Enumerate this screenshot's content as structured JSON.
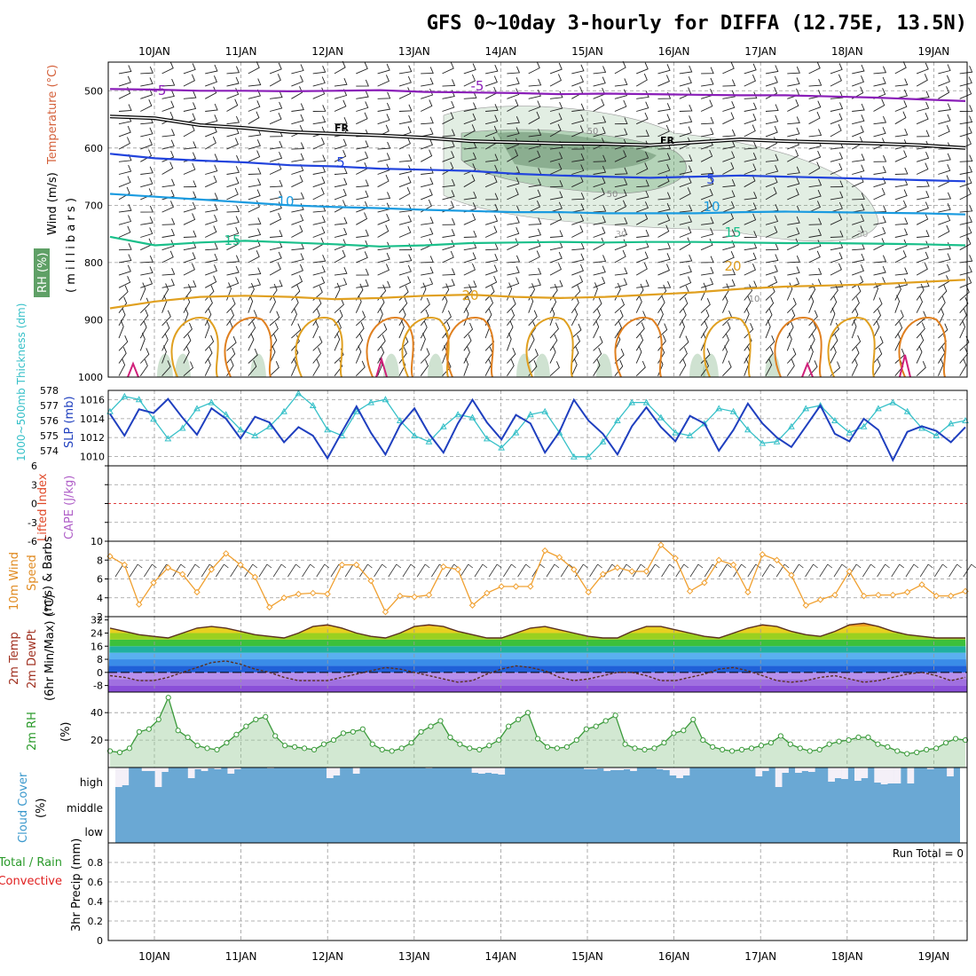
{
  "title": "GFS 0~10day 3-hourly for DIFFA (12.75E, 13.5N)",
  "dates": [
    "10JAN",
    "11JAN",
    "12JAN",
    "13JAN",
    "14JAN",
    "15JAN",
    "16JAN",
    "17JAN",
    "18JAN",
    "19JAN"
  ],
  "colors": {
    "temp_neg5": "#8a1eb8",
    "temp_5": "#2244dd",
    "temp_10": "#1a9be0",
    "temp_15": "#1abf8a",
    "temp_20": "#e0a020",
    "freezing": "#000000",
    "rh_fill": "#5fa066",
    "slp": "#1f3fbf",
    "thickness": "#36c0c8",
    "wind10": "#f0a030",
    "rh2m": "#3a9a3a",
    "cloud": "#6aa8d4",
    "precip_total": "#3aa83a",
    "precip_conv": "#e02020"
  },
  "labels": {
    "upper_wind": "Wind (m/s)",
    "upper_temp": "Temperature (°C)",
    "upper_units": "( m i l l i b a r s )",
    "upper_rh": "RH (%)",
    "slp": "SLP (mb)",
    "thickness": "1000~500mb Thickness (dm)",
    "lifted": "Lifted Index",
    "cape": "CAPE (J/kg)",
    "wind10_a": "10m Wind",
    "wind10_b": "Speed",
    "wind10_c": "(m/s)  & Barbs",
    "temp_a": "2m Temp",
    "temp_b": "2m DewPt",
    "temp_c": "(6hr Min/Max) (°C)",
    "rh_a": "2m RH",
    "rh_b": "(%)",
    "cloud_a": "Cloud Cover",
    "cloud_b": "(%)",
    "precip_a": "Total / Rain",
    "precip_b": "Convective",
    "precip_c": "3hr Precip (mm)",
    "run_total": "Run Total = 0",
    "fr": "FR",
    "cloud_levels": [
      "high",
      "middle",
      "low"
    ]
  },
  "chart_data": [
    {
      "type": "line",
      "name": "upper-air",
      "ylabel": "millibars",
      "yticks": [
        500,
        600,
        700,
        800,
        900,
        1000
      ],
      "ylim": [
        450,
        1000
      ],
      "contour_labels": [
        "-5",
        "-5",
        "5",
        "5",
        "10",
        "10",
        "15",
        "15",
        "20",
        "20",
        "10",
        "30",
        "30",
        "50",
        "50"
      ],
      "isotherms": [
        {
          "name": "-5",
          "values": [
            497,
            498,
            500,
            500,
            501,
            500,
            499,
            502,
            503,
            504,
            506,
            505,
            506,
            507,
            508,
            508,
            510,
            512,
            515,
            518
          ]
        },
        {
          "name": "freezing",
          "values": [
            545,
            548,
            560,
            565,
            572,
            575,
            578,
            582,
            588,
            590,
            592,
            593,
            595,
            590,
            585,
            588,
            590,
            592,
            595,
            600
          ]
        },
        {
          "name": "5",
          "values": [
            610,
            618,
            622,
            625,
            630,
            632,
            636,
            638,
            640,
            645,
            648,
            650,
            652,
            650,
            648,
            650,
            652,
            654,
            656,
            658
          ]
        },
        {
          "name": "10",
          "values": [
            680,
            685,
            690,
            695,
            700,
            703,
            705,
            708,
            710,
            712,
            712,
            714,
            714,
            714,
            712,
            711,
            712,
            713,
            714,
            716
          ]
        },
        {
          "name": "15",
          "values": [
            755,
            770,
            765,
            762,
            765,
            768,
            772,
            770,
            766,
            765,
            764,
            765,
            764,
            764,
            765,
            766,
            766,
            767,
            768,
            770
          ]
        },
        {
          "name": "20",
          "values": [
            880,
            868,
            860,
            858,
            860,
            864,
            862,
            858,
            856,
            860,
            862,
            860,
            856,
            852,
            846,
            842,
            840,
            838,
            834,
            830
          ]
        }
      ]
    },
    {
      "type": "line",
      "name": "slp-thickness",
      "slp_ylim": [
        1009,
        1017
      ],
      "slp_ticks": [
        1010,
        1012,
        1014,
        1016
      ],
      "thick_ylim": [
        573,
        578
      ],
      "thick_ticks": [
        574,
        575,
        576,
        577,
        578
      ],
      "slp": [
        1014.5,
        1012.2,
        1015.0,
        1014.6,
        1016.1,
        1014.1,
        1012.3,
        1015.1,
        1014.0,
        1011.9,
        1014.2,
        1013.6,
        1011.5,
        1013.1,
        1012.2,
        1009.8,
        1012.6,
        1015.3,
        1012.5,
        1010.2,
        1013.3,
        1015.1,
        1012.4,
        1010.4,
        1013.5,
        1016.0,
        1013.6,
        1011.8,
        1014.4,
        1013.5,
        1010.4,
        1012.6,
        1016.0,
        1013.8,
        1012.4,
        1010.2,
        1013.2,
        1015.2,
        1013.1,
        1011.6,
        1014.3,
        1013.5,
        1010.6,
        1012.8,
        1015.6,
        1013.5,
        1012.0,
        1011.0,
        1013.2,
        1015.4,
        1012.4,
        1011.6,
        1014.0,
        1012.8,
        1009.6,
        1012.6,
        1013.2,
        1012.7,
        1011.5,
        1013.1
      ],
      "thickness": [
        576.6,
        577.6,
        577.4,
        576.1,
        574.8,
        575.5,
        576.8,
        577.2,
        576.4,
        575.4,
        575.0,
        575.6,
        576.6,
        577.8,
        577.0,
        575.4,
        575.0,
        576.6,
        577.2,
        577.4,
        576.0,
        575.0,
        574.6,
        575.6,
        576.4,
        576.2,
        574.8,
        574.2,
        575.2,
        576.4,
        576.6,
        575.2,
        573.6,
        573.6,
        574.6,
        576.0,
        577.2,
        577.2,
        576.2,
        575.2,
        575.0,
        575.8,
        576.8,
        576.6,
        575.4,
        574.5,
        574.6,
        575.6,
        576.8,
        577.0,
        576.0,
        575.2,
        575.6,
        576.8,
        577.2,
        576.6,
        575.5,
        575.0,
        575.8,
        576.0
      ]
    },
    {
      "type": "line",
      "name": "lifted-index",
      "ylim": [
        -6,
        6
      ],
      "ticks": [
        -6,
        -3,
        0,
        3,
        6
      ],
      "values": []
    },
    {
      "type": "line",
      "name": "wind10m",
      "ylim": [
        2,
        10
      ],
      "ticks": [
        2,
        4,
        6,
        8,
        10
      ],
      "values": [
        8.4,
        7.5,
        3.3,
        5.6,
        7.2,
        6.5,
        4.6,
        7.0,
        8.7,
        7.5,
        6.2,
        3.0,
        4.0,
        4.4,
        4.5,
        4.4,
        7.5,
        7.5,
        5.8,
        2.5,
        4.2,
        4.1,
        4.3,
        7.3,
        7.0,
        3.2,
        4.5,
        5.2,
        5.2,
        5.2,
        9.0,
        8.3,
        7.0,
        4.6,
        6.5,
        7.2,
        6.8,
        6.8,
        9.6,
        8.2,
        4.7,
        5.6,
        8.0,
        7.5,
        4.6,
        8.6,
        8.0,
        6.4,
        3.2,
        3.8,
        4.3,
        6.8,
        4.2,
        4.3,
        4.3,
        4.6,
        5.4,
        4.2,
        4.2,
        4.7
      ]
    },
    {
      "type": "area",
      "name": "temp2m",
      "ylim": [
        -12,
        34
      ],
      "ticks": [
        -8,
        0,
        8,
        16,
        24,
        32
      ],
      "temperature": [
        27,
        25,
        23,
        22,
        21,
        24,
        27,
        28,
        27,
        25,
        23,
        22,
        21,
        24,
        28,
        29,
        27,
        24,
        22,
        21,
        24,
        28,
        29,
        28,
        25,
        23,
        21,
        21,
        24,
        27,
        28,
        26,
        24,
        22,
        21,
        21,
        25,
        28,
        28,
        26,
        24,
        22,
        21,
        24,
        27,
        29,
        28,
        25,
        23,
        22,
        25,
        29,
        30,
        28,
        25,
        23,
        22,
        21,
        21,
        21
      ],
      "dewpoint": [
        -2,
        -3,
        -5,
        -5,
        -3,
        0,
        3,
        6,
        7,
        5,
        2,
        0,
        -3,
        -5,
        -5,
        -5,
        -3,
        -1,
        1,
        3,
        2,
        0,
        -2,
        -4,
        -6,
        -5,
        -1,
        2,
        4,
        3,
        1,
        -3,
        -5,
        -4,
        -2,
        0,
        0,
        -2,
        -5,
        -5,
        -3,
        -1,
        2,
        3,
        1,
        -2,
        -5,
        -6,
        -5,
        -3,
        -2,
        -4,
        -6,
        -5,
        -3,
        -1,
        0,
        -2,
        -5,
        -3
      ]
    },
    {
      "type": "area",
      "name": "rh2m",
      "ylim": [
        0,
        55
      ],
      "ticks": [
        20,
        40
      ],
      "values": [
        12,
        11,
        14,
        26,
        28,
        35,
        51,
        27,
        22,
        16,
        14,
        13,
        18,
        24,
        30,
        35,
        37,
        23,
        16,
        15,
        14,
        13,
        17,
        20,
        25,
        26,
        28,
        17,
        13,
        12,
        14,
        18,
        26,
        30,
        34,
        22,
        17,
        14,
        13,
        16,
        20,
        30,
        35,
        40,
        21,
        15,
        14,
        15,
        20,
        28,
        30,
        34,
        38,
        17,
        14,
        13,
        14,
        18,
        25,
        27,
        35,
        20,
        15,
        13,
        12,
        13,
        14,
        16,
        18,
        23,
        17,
        14,
        12,
        13,
        17,
        19,
        20,
        22,
        22,
        17,
        15,
        12,
        10,
        11,
        13,
        14,
        18,
        21,
        20
      ]
    },
    {
      "type": "bar",
      "name": "cloud-cover",
      "levels": [
        "high",
        "middle",
        "low"
      ],
      "ylim": [
        0,
        100
      ],
      "high": [
        22,
        20,
        0,
        0,
        4,
        4,
        22,
        5,
        0,
        0,
        0,
        12,
        2,
        4,
        1,
        2,
        0,
        7,
        2,
        0,
        0,
        0,
        0,
        1,
        0,
        0,
        0,
        0,
        0,
        0,
        0,
        0,
        12,
        9,
        0,
        0,
        7,
        0,
        0,
        0,
        0,
        0,
        0,
        0,
        0,
        0,
        0,
        1,
        0,
        0,
        0,
        0,
        0,
        0,
        6,
        7,
        6,
        7,
        8,
        0,
        0,
        0,
        0,
        0,
        0,
        0,
        0,
        0,
        0,
        0,
        0,
        2,
        2,
        1,
        4,
        3,
        3,
        2,
        4,
        0,
        0,
        0,
        2,
        3,
        9,
        12,
        9,
        0,
        0,
        0,
        0,
        0,
        0,
        0,
        0,
        0,
        0,
        10,
        4,
        0,
        22,
        6,
        0,
        6,
        4,
        5,
        0,
        0,
        16,
        12,
        13,
        0,
        15,
        12,
        0,
        17,
        19,
        18,
        18,
        0,
        18,
        0,
        0,
        2,
        0,
        0,
        10,
        0
      ]
    },
    {
      "type": "bar",
      "name": "precip",
      "ylim": [
        0,
        1
      ],
      "ticks": [
        0,
        0.2,
        0.4,
        0.6,
        0.8
      ],
      "total": [],
      "convective": []
    }
  ]
}
